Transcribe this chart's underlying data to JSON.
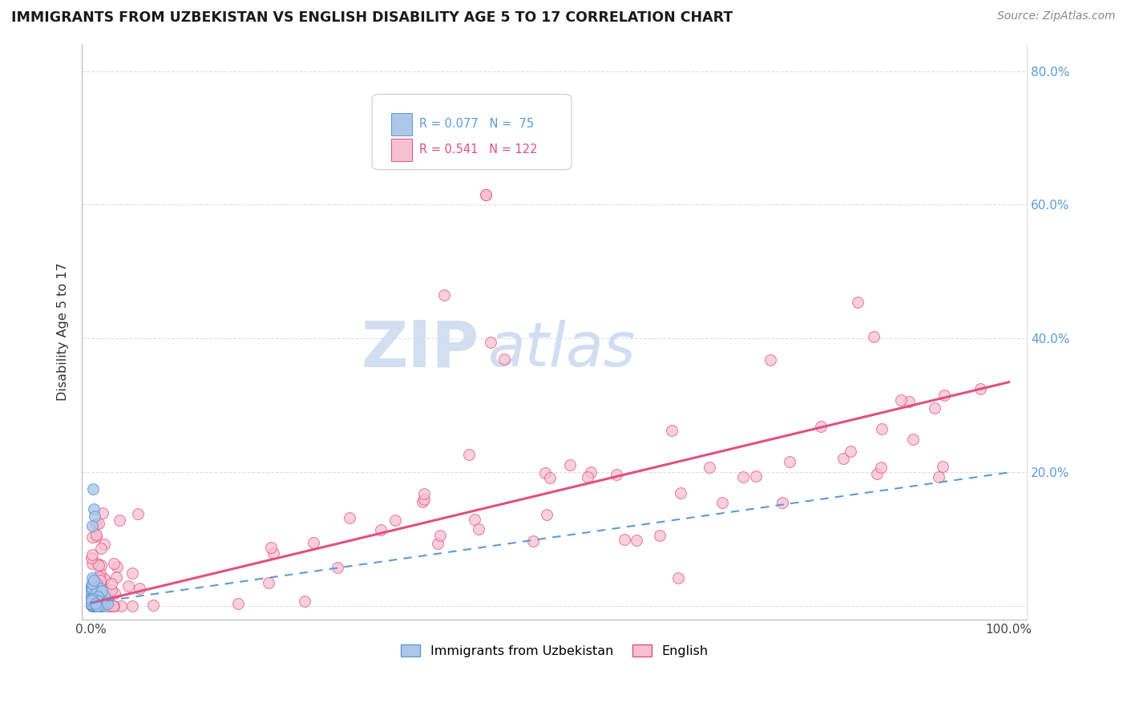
{
  "title": "IMMIGRANTS FROM UZBEKISTAN VS ENGLISH DISABILITY AGE 5 TO 17 CORRELATION CHART",
  "source": "Source: ZipAtlas.com",
  "ylabel": "Disability Age 5 to 17",
  "legend_R1": "R = 0.077",
  "legend_N1": "N =  75",
  "legend_R2": "R = 0.541",
  "legend_N2": "N = 122",
  "legend_label1": "Immigrants from Uzbekistan",
  "legend_label2": "English",
  "blue_fill": "#aec6e8",
  "blue_edge": "#5b9bd5",
  "pink_fill": "#f7c0d0",
  "pink_edge": "#e05080",
  "blue_line_color": "#5b9bd5",
  "pink_line_color": "#e05080",
  "grid_color": "#cccccc",
  "right_axis_color": "#5b9bd5",
  "title_color": "#1a1a1a",
  "source_color": "#888888",
  "watermark_zip_color": "#ccdcf0",
  "watermark_atlas_color": "#c8d8f0"
}
